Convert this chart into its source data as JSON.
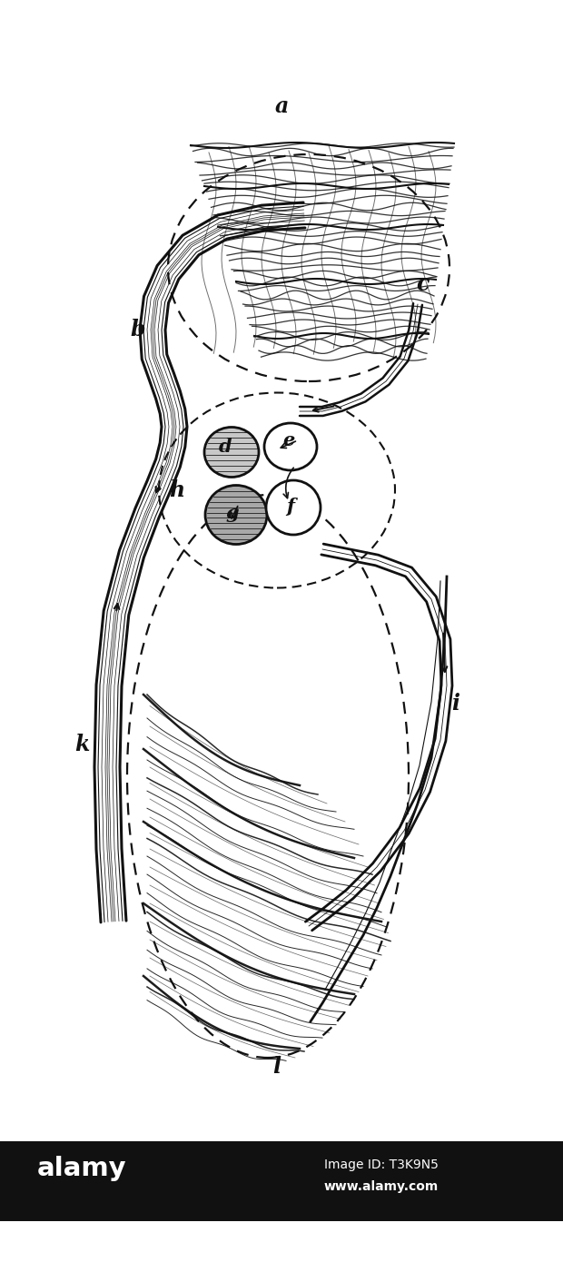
{
  "bg_color": "#ffffff",
  "ink_color": "#111111",
  "label_a": "a",
  "label_b": "b",
  "label_c": "c",
  "label_d": "d",
  "label_e": "e",
  "label_f": "f",
  "label_g": "g",
  "label_h": "h",
  "label_i": "i",
  "label_k": "k",
  "label_l": "l",
  "alamy_text": "alamy",
  "alamy_id": "Image ID: T3K9N5",
  "alamy_url": "www.alamy.com",
  "fig_width": 6.2,
  "fig_height": 13.9,
  "dpi": 100
}
